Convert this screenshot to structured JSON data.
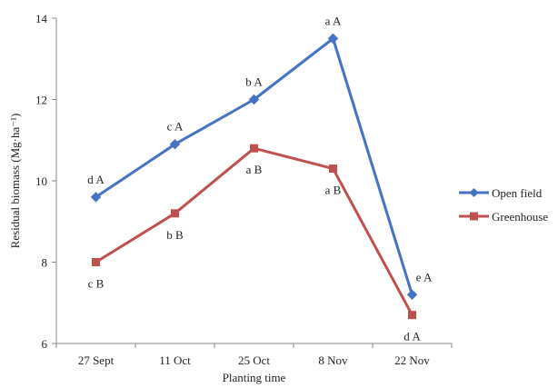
{
  "chart_data": {
    "type": "line",
    "categories": [
      "27 Sept",
      "11 Oct",
      "25 Oct",
      "8 Nov",
      "22 Nov"
    ],
    "xlabel": "Planting time",
    "ylabel": "Residual biomass (Mg·ha⁻¹)",
    "ylim": [
      6,
      14
    ],
    "yticks": [
      6,
      8,
      10,
      12,
      14
    ],
    "grid": false,
    "legend_position": "right",
    "series": [
      {
        "name": "Open field",
        "color": "#4472C4",
        "marker": "diamond",
        "values": [
          9.6,
          10.9,
          12.0,
          13.5,
          7.2
        ],
        "labels": [
          "d A",
          "c A",
          "b A",
          "a A",
          "e A"
        ]
      },
      {
        "name": "Greenhouse",
        "color": "#C0504D",
        "marker": "square",
        "values": [
          8.0,
          9.2,
          10.8,
          10.3,
          6.7
        ],
        "labels": [
          "c B",
          "b B",
          "a B",
          "a B",
          "d A"
        ]
      }
    ]
  }
}
